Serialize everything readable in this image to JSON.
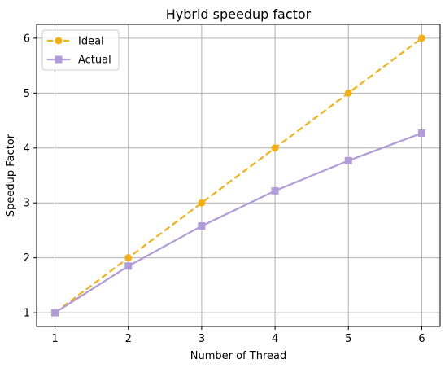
{
  "chart_data": {
    "type": "line",
    "title": "Hybrid speedup factor",
    "xlabel": "Number of Thread",
    "ylabel": "Speedup Factor",
    "x": [
      1,
      2,
      3,
      4,
      5,
      6
    ],
    "xticks": [
      "1",
      "2",
      "3",
      "4",
      "5",
      "6"
    ],
    "yticks": [
      "1",
      "2",
      "3",
      "4",
      "5",
      "6"
    ],
    "xlim": [
      0.75,
      6.25
    ],
    "ylim": [
      0.75,
      6.25
    ],
    "grid": true,
    "legend_position": "top-left",
    "series": [
      {
        "name": "Ideal",
        "values": [
          1,
          2,
          3,
          4,
          5,
          6
        ],
        "color": "#f5b014",
        "line_style": "dashed",
        "marker": "circle"
      },
      {
        "name": "Actual",
        "values": [
          1.0,
          1.85,
          2.58,
          3.22,
          3.77,
          4.27
        ],
        "color": "#b19cd9",
        "line_style": "solid",
        "marker": "square"
      }
    ]
  }
}
